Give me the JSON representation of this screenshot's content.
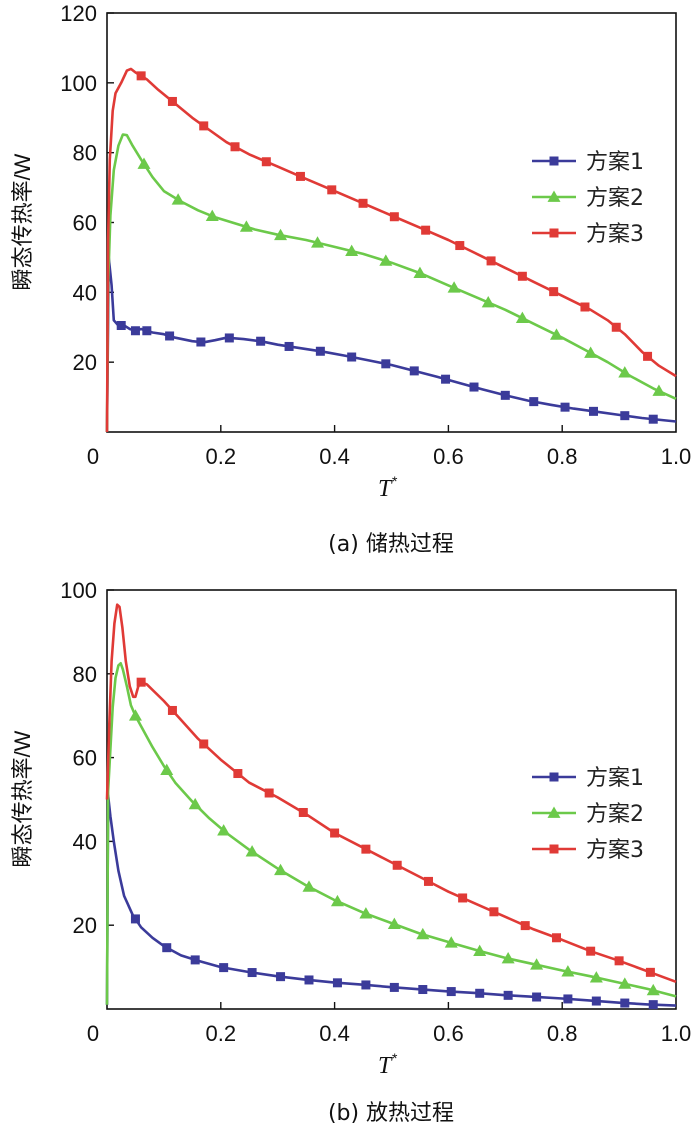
{
  "colors": {
    "s1": "#3b3b9a",
    "s2": "#6cc94a",
    "s3": "#e03a36"
  },
  "chart_data": [
    {
      "type": "line",
      "caption": "(a) 储热过程",
      "ylabel": "瞬态传热率/W",
      "xlabel": "T",
      "xlabel_sup": "*",
      "xlim": [
        0,
        1.0
      ],
      "ylim": [
        0,
        120
      ],
      "xticks": [
        "0",
        "0.2",
        "0.4",
        "0.6",
        "0.8",
        "1.0"
      ],
      "yticks": [
        "20",
        "40",
        "60",
        "80",
        "100",
        "120"
      ],
      "series": [
        {
          "name": "方案1",
          "marker": "square",
          "color_key": "s1",
          "points": [
            [
              0,
              0
            ],
            [
              0.003,
              50
            ],
            [
              0.008,
              42
            ],
            [
              0.012,
              32
            ],
            [
              0.02,
              30.5
            ],
            [
              0.03,
              30.5
            ],
            [
              0.04,
              29.5
            ],
            [
              0.05,
              29
            ],
            [
              0.06,
              29.5
            ],
            [
              0.08,
              28.5
            ],
            [
              0.1,
              28
            ],
            [
              0.12,
              27
            ],
            [
              0.15,
              26
            ],
            [
              0.17,
              25.7
            ],
            [
              0.19,
              26.3
            ],
            [
              0.21,
              27
            ],
            [
              0.24,
              26.6
            ],
            [
              0.27,
              26
            ],
            [
              0.3,
              25
            ],
            [
              0.34,
              24
            ],
            [
              0.38,
              23
            ],
            [
              0.42,
              21.8
            ],
            [
              0.46,
              20.5
            ],
            [
              0.5,
              19.2
            ],
            [
              0.54,
              17.5
            ],
            [
              0.58,
              15.8
            ],
            [
              0.62,
              14
            ],
            [
              0.66,
              12.2
            ],
            [
              0.7,
              10.5
            ],
            [
              0.74,
              9
            ],
            [
              0.78,
              7.8
            ],
            [
              0.82,
              6.7
            ],
            [
              0.86,
              5.8
            ],
            [
              0.9,
              4.9
            ],
            [
              0.94,
              4
            ],
            [
              1.0,
              3
            ]
          ],
          "markers_x": [
            0.025,
            0.05,
            0.07,
            0.11,
            0.165,
            0.215,
            0.27,
            0.32,
            0.375,
            0.43,
            0.49,
            0.54,
            0.595,
            0.645,
            0.7,
            0.75,
            0.805,
            0.855,
            0.91,
            0.96
          ]
        },
        {
          "name": "方案2",
          "marker": "triangle",
          "color_key": "s2",
          "points": [
            [
              0,
              0
            ],
            [
              0.002,
              42
            ],
            [
              0.006,
              62
            ],
            [
              0.012,
              75
            ],
            [
              0.02,
              82
            ],
            [
              0.028,
              85.2
            ],
            [
              0.035,
              85
            ],
            [
              0.045,
              82
            ],
            [
              0.06,
              78
            ],
            [
              0.08,
              73
            ],
            [
              0.1,
              69
            ],
            [
              0.13,
              66
            ],
            [
              0.16,
              63.5
            ],
            [
              0.19,
              61.5
            ],
            [
              0.22,
              60
            ],
            [
              0.26,
              58
            ],
            [
              0.3,
              56.5
            ],
            [
              0.35,
              55
            ],
            [
              0.4,
              53
            ],
            [
              0.45,
              51
            ],
            [
              0.5,
              48.5
            ],
            [
              0.55,
              45.5
            ],
            [
              0.6,
              42
            ],
            [
              0.65,
              38.5
            ],
            [
              0.7,
              35
            ],
            [
              0.75,
              31
            ],
            [
              0.8,
              27
            ],
            [
              0.84,
              23.5
            ],
            [
              0.88,
              20
            ],
            [
              0.92,
              16
            ],
            [
              0.96,
              12.5
            ],
            [
              1.0,
              9.5
            ]
          ],
          "markers_x": [
            0.065,
            0.125,
            0.185,
            0.245,
            0.305,
            0.37,
            0.43,
            0.49,
            0.55,
            0.61,
            0.67,
            0.73,
            0.79,
            0.85,
            0.91,
            0.97
          ]
        },
        {
          "name": "方案3",
          "marker": "square",
          "color_key": "s3",
          "points": [
            [
              0,
              0
            ],
            [
              0.002,
              55
            ],
            [
              0.005,
              78
            ],
            [
              0.01,
              92
            ],
            [
              0.015,
              97
            ],
            [
              0.025,
              100
            ],
            [
              0.035,
              103.5
            ],
            [
              0.042,
              104
            ],
            [
              0.05,
              103
            ],
            [
              0.07,
              101
            ],
            [
              0.09,
              98
            ],
            [
              0.12,
              94
            ],
            [
              0.15,
              90
            ],
            [
              0.18,
              86.5
            ],
            [
              0.21,
              83
            ],
            [
              0.25,
              79.5
            ],
            [
              0.3,
              76
            ],
            [
              0.35,
              72.5
            ],
            [
              0.4,
              69
            ],
            [
              0.45,
              65.5
            ],
            [
              0.5,
              62
            ],
            [
              0.55,
              58.5
            ],
            [
              0.6,
              55
            ],
            [
              0.65,
              51
            ],
            [
              0.7,
              47
            ],
            [
              0.75,
              43
            ],
            [
              0.8,
              39
            ],
            [
              0.85,
              35
            ],
            [
              0.88,
              32
            ],
            [
              0.91,
              28
            ],
            [
              0.94,
              23
            ],
            [
              0.97,
              19
            ],
            [
              1.0,
              16
            ]
          ],
          "markers_x": [
            0.06,
            0.115,
            0.17,
            0.225,
            0.28,
            0.34,
            0.395,
            0.45,
            0.505,
            0.56,
            0.62,
            0.675,
            0.73,
            0.785,
            0.84,
            0.895,
            0.95
          ]
        }
      ]
    },
    {
      "type": "line",
      "caption": "(b) 放热过程",
      "ylabel": "瞬态传热率/W",
      "xlabel": "T",
      "xlabel_sup": "*",
      "xlim": [
        0,
        1.0
      ],
      "ylim": [
        0,
        100
      ],
      "xticks": [
        "0",
        "0.2",
        "0.4",
        "0.6",
        "0.8",
        "1.0"
      ],
      "yticks": [
        "20",
        "40",
        "60",
        "80",
        "100"
      ],
      "series": [
        {
          "name": "方案1",
          "marker": "square",
          "color_key": "s1",
          "points": [
            [
              0,
              1
            ],
            [
              0.002,
              51
            ],
            [
              0.006,
              46
            ],
            [
              0.012,
              40
            ],
            [
              0.02,
              33
            ],
            [
              0.03,
              27
            ],
            [
              0.045,
              22.5
            ],
            [
              0.06,
              19.5
            ],
            [
              0.08,
              17
            ],
            [
              0.1,
              15
            ],
            [
              0.13,
              12.8
            ],
            [
              0.16,
              11.5
            ],
            [
              0.2,
              10
            ],
            [
              0.25,
              8.8
            ],
            [
              0.3,
              7.8
            ],
            [
              0.35,
              7
            ],
            [
              0.4,
              6.3
            ],
            [
              0.45,
              5.8
            ],
            [
              0.5,
              5.2
            ],
            [
              0.55,
              4.7
            ],
            [
              0.6,
              4.2
            ],
            [
              0.65,
              3.8
            ],
            [
              0.7,
              3.3
            ],
            [
              0.75,
              2.9
            ],
            [
              0.8,
              2.5
            ],
            [
              0.85,
              2
            ],
            [
              0.9,
              1.5
            ],
            [
              0.95,
              1.1
            ],
            [
              1.0,
              0.8
            ]
          ],
          "markers_x": [
            0.05,
            0.105,
            0.155,
            0.205,
            0.255,
            0.305,
            0.355,
            0.405,
            0.455,
            0.505,
            0.555,
            0.605,
            0.655,
            0.705,
            0.755,
            0.81,
            0.86,
            0.91,
            0.96
          ]
        },
        {
          "name": "方案2",
          "marker": "triangle",
          "color_key": "s2",
          "points": [
            [
              0,
              1
            ],
            [
              0.002,
              52
            ],
            [
              0.006,
              62
            ],
            [
              0.01,
              72
            ],
            [
              0.015,
              79
            ],
            [
              0.02,
              82
            ],
            [
              0.024,
              82.5
            ],
            [
              0.028,
              81
            ],
            [
              0.035,
              77
            ],
            [
              0.042,
              72.5
            ],
            [
              0.05,
              70
            ],
            [
              0.06,
              67.5
            ],
            [
              0.08,
              62.5
            ],
            [
              0.1,
              58
            ],
            [
              0.12,
              54
            ],
            [
              0.15,
              49.5
            ],
            [
              0.18,
              45.5
            ],
            [
              0.21,
              42
            ],
            [
              0.25,
              38
            ],
            [
              0.3,
              33.5
            ],
            [
              0.35,
              29.5
            ],
            [
              0.4,
              26
            ],
            [
              0.45,
              23
            ],
            [
              0.5,
              20.5
            ],
            [
              0.55,
              18
            ],
            [
              0.6,
              16
            ],
            [
              0.65,
              14
            ],
            [
              0.7,
              12.2
            ],
            [
              0.75,
              10.7
            ],
            [
              0.8,
              9.2
            ],
            [
              0.85,
              7.8
            ],
            [
              0.9,
              6.3
            ],
            [
              0.95,
              4.8
            ],
            [
              1.0,
              3
            ]
          ],
          "markers_x": [
            0.05,
            0.105,
            0.155,
            0.205,
            0.255,
            0.305,
            0.355,
            0.405,
            0.455,
            0.505,
            0.555,
            0.605,
            0.655,
            0.705,
            0.755,
            0.81,
            0.86,
            0.91,
            0.96
          ]
        },
        {
          "name": "方案3",
          "marker": "square",
          "color_key": "s3",
          "points": [
            [
              0,
              50
            ],
            [
              0.004,
              68
            ],
            [
              0.008,
              83
            ],
            [
              0.013,
              92
            ],
            [
              0.018,
              96.5
            ],
            [
              0.022,
              96
            ],
            [
              0.027,
              91
            ],
            [
              0.033,
              83
            ],
            [
              0.04,
              77
            ],
            [
              0.046,
              74.5
            ],
            [
              0.05,
              74.5
            ],
            [
              0.055,
              77
            ],
            [
              0.06,
              78
            ],
            [
              0.07,
              77.5
            ],
            [
              0.1,
              73.5
            ],
            [
              0.13,
              69
            ],
            [
              0.16,
              64.5
            ],
            [
              0.2,
              59.5
            ],
            [
              0.25,
              54
            ],
            [
              0.3,
              50.5
            ],
            [
              0.35,
              46.5
            ],
            [
              0.4,
              42
            ],
            [
              0.45,
              38.5
            ],
            [
              0.5,
              35
            ],
            [
              0.55,
              31.5
            ],
            [
              0.6,
              28
            ],
            [
              0.65,
              25
            ],
            [
              0.7,
              22
            ],
            [
              0.75,
              19
            ],
            [
              0.8,
              16.5
            ],
            [
              0.85,
              13.8
            ],
            [
              0.9,
              11.5
            ],
            [
              0.95,
              9
            ],
            [
              1.0,
              6.5
            ]
          ],
          "markers_x": [
            0.06,
            0.115,
            0.17,
            0.23,
            0.285,
            0.345,
            0.4,
            0.455,
            0.51,
            0.565,
            0.625,
            0.68,
            0.735,
            0.79,
            0.85,
            0.9,
            0.955
          ]
        }
      ]
    }
  ]
}
